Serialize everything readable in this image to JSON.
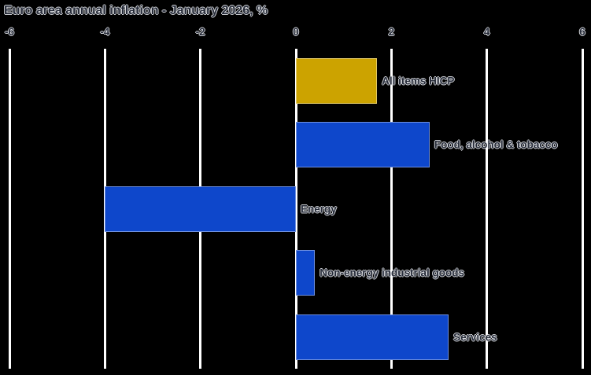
{
  "title": "Euro area annual inflation - January 2026, %",
  "chart_data": {
    "type": "bar",
    "orientation": "horizontal",
    "title": "Euro area annual inflation - January 2026, %",
    "categories": [
      "All items HICP",
      "Food, alcohol & tobacco",
      "Energy",
      "Non-energy industrial goods",
      "Services"
    ],
    "values": [
      1.7,
      2.8,
      -4.0,
      0.4,
      3.2
    ],
    "unit": "%",
    "xlim": [
      -6,
      6
    ],
    "xticks": [
      -6,
      -4,
      -2,
      0,
      2,
      4,
      6
    ],
    "grid": "vertical",
    "legend": "none",
    "colors": {
      "highlight_bar": "#CCA300",
      "default_bar": "#0E47CB",
      "gridline": "#FFFFFF",
      "background": "#000000"
    },
    "bar_color_keys": [
      "highlight_bar",
      "default_bar",
      "default_bar",
      "default_bar",
      "default_bar"
    ]
  }
}
